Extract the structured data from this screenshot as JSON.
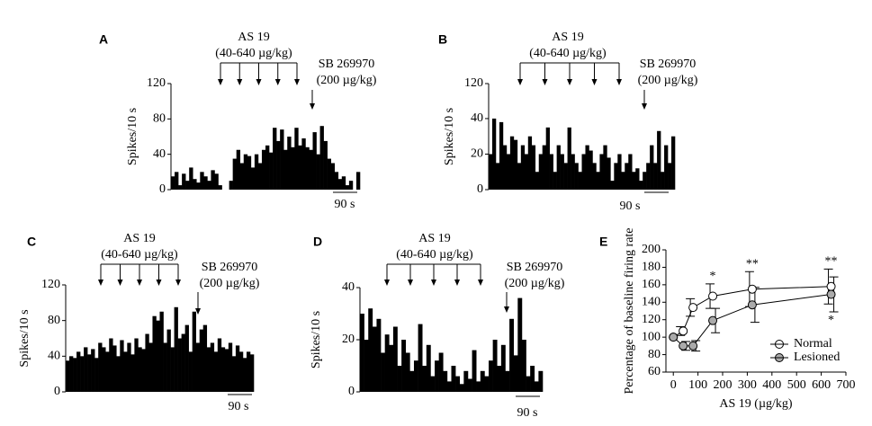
{
  "chart_data": [
    {
      "type": "bar",
      "panel": "A",
      "ylabel": "Spikes/10 s",
      "treatment": "AS 19",
      "treatment_dose": "(40-640 µg/kg)",
      "antagonist": "SB 269970",
      "antagonist_dose": "(200 µg/kg)",
      "scale_bar": "90 s",
      "color": "#000000",
      "values": [
        15,
        20,
        5,
        18,
        10,
        25,
        12,
        8,
        20,
        15,
        10,
        22,
        18,
        5,
        0,
        0,
        10,
        35,
        45,
        30,
        40,
        38,
        25,
        40,
        30,
        45,
        50,
        42,
        70,
        55,
        68,
        45,
        60,
        48,
        70,
        50,
        58,
        48,
        45,
        65,
        40,
        72,
        55,
        35,
        30,
        20,
        12,
        15,
        5,
        10,
        0,
        20
      ],
      "ylim": [
        0,
        120
      ],
      "yticks": [
        0,
        40,
        80,
        120
      ]
    },
    {
      "type": "bar",
      "panel": "B",
      "ylabel": "Spikes/10 s",
      "treatment": "AS 19",
      "treatment_dose": "(40-640 µg/kg)",
      "antagonist": "SB 269970",
      "antagonist_dose": "(200 µg/kg)",
      "scale_bar": "90 s",
      "color": "#000000",
      "values": [
        20,
        40,
        15,
        38,
        25,
        20,
        30,
        28,
        15,
        25,
        20,
        30,
        25,
        10,
        20,
        25,
        35,
        20,
        10,
        25,
        20,
        15,
        35,
        20,
        15,
        10,
        20,
        25,
        22,
        15,
        10,
        20,
        25,
        18,
        5,
        15,
        20,
        10,
        15,
        20,
        10,
        12,
        5,
        10,
        15,
        25,
        15,
        33,
        10,
        25,
        15,
        30
      ],
      "ylim": [
        0,
        120
      ],
      "y_axis_break": [
        40,
        120
      ],
      "yticks": [
        0,
        20,
        40,
        120
      ]
    },
    {
      "type": "bar",
      "panel": "C",
      "ylabel": "Spikes/10 s",
      "treatment": "AS 19",
      "treatment_dose": "(40-640 µg/kg)",
      "antagonist": "SB 269970",
      "antagonist_dose": "(200 µg/kg)",
      "scale_bar": "90 s",
      "color": "#000000",
      "values": [
        35,
        40,
        38,
        45,
        40,
        50,
        42,
        48,
        38,
        55,
        50,
        45,
        60,
        52,
        40,
        58,
        45,
        55,
        42,
        60,
        50,
        48,
        65,
        55,
        85,
        80,
        90,
        55,
        70,
        50,
        95,
        60,
        65,
        75,
        45,
        90,
        55,
        70,
        75,
        50,
        55,
        45,
        60,
        50,
        48,
        55,
        40,
        52,
        45,
        38,
        45,
        42
      ],
      "ylim": [
        0,
        120
      ],
      "yticks": [
        0,
        40,
        80,
        120
      ]
    },
    {
      "type": "bar",
      "panel": "D",
      "ylabel": "Spikes/10 s",
      "treatment": "AS 19",
      "treatment_dose": "(40-640 µg/kg)",
      "antagonist": "SB 269970",
      "antagonist_dose": "(200 µg/kg)",
      "scale_bar": "90 s",
      "color": "#000000",
      "values": [
        30,
        20,
        32,
        25,
        28,
        15,
        22,
        18,
        25,
        10,
        20,
        15,
        8,
        12,
        26,
        10,
        18,
        6,
        12,
        15,
        8,
        4,
        10,
        6,
        3,
        8,
        5,
        16,
        4,
        8,
        6,
        12,
        20,
        10,
        18,
        8,
        28,
        14,
        36,
        20,
        6,
        10,
        4,
        8
      ],
      "ylim": [
        0,
        40
      ],
      "yticks": [
        0,
        20,
        40
      ]
    },
    {
      "type": "line",
      "panel": "E",
      "ylabel": "Percentage of baseline firing rate",
      "xlabel": "AS 19 (µg/kg)",
      "x": [
        0,
        40,
        80,
        160,
        320,
        640
      ],
      "series": [
        {
          "name": "Normal",
          "color": "#ffffff",
          "values": [
            100,
            107,
            134,
            147,
            155,
            158
          ],
          "errors": [
            0,
            5,
            10,
            14,
            20,
            20
          ]
        },
        {
          "name": "Lesioned",
          "color": "#aaaaaa",
          "values": [
            100,
            90,
            90,
            119,
            137,
            149
          ],
          "errors": [
            0,
            5,
            6,
            14,
            20,
            20
          ]
        }
      ],
      "annotations": [
        {
          "x": 160,
          "text": "*",
          "position": "above"
        },
        {
          "x": 320,
          "text": "**",
          "position": "above"
        },
        {
          "x": 640,
          "text": "**",
          "position": "above"
        },
        {
          "x": 640,
          "text": "*",
          "position": "below"
        }
      ],
      "xlim": [
        -30,
        700
      ],
      "xticks": [
        0,
        100,
        200,
        300,
        400,
        500,
        600,
        700
      ],
      "ylim": [
        60,
        200
      ],
      "yticks": [
        60,
        80,
        100,
        120,
        140,
        160,
        180,
        200
      ]
    }
  ]
}
